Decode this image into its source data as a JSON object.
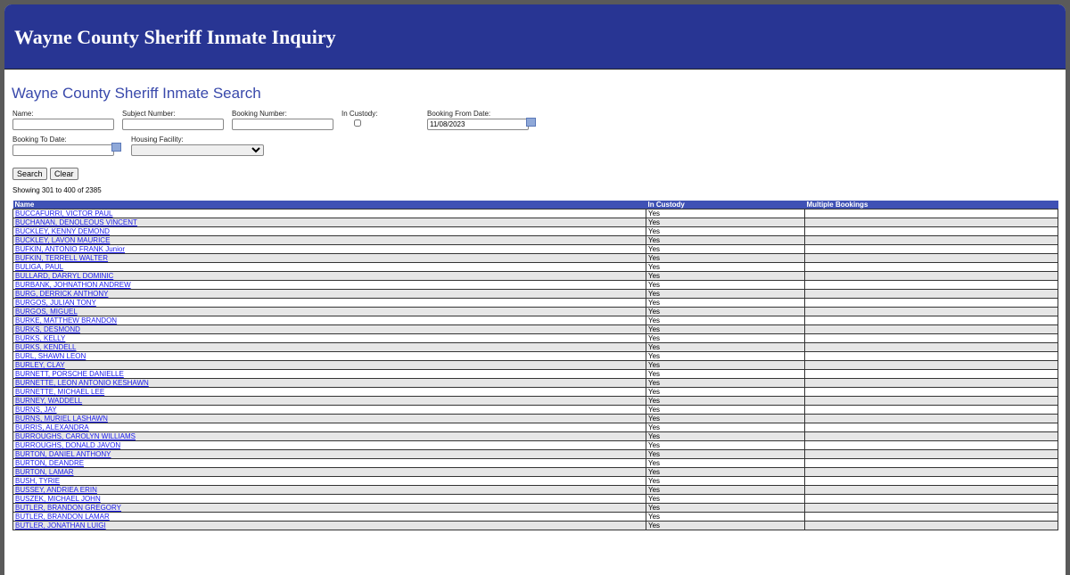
{
  "header": {
    "title": "Wayne County Sheriff Inmate Inquiry"
  },
  "search": {
    "title": "Wayne County Sheriff Inmate Search",
    "name_label": "Name:",
    "name_value": "",
    "subject_label": "Subject Number:",
    "subject_value": "",
    "booking_label": "Booking Number:",
    "booking_value": "",
    "custody_label": "In Custody:",
    "custody_checked": false,
    "from_label": "Booking From Date:",
    "from_value": "11/08/2023",
    "to_label": "Booking To Date:",
    "to_value": "",
    "housing_label": "Housing Facility:",
    "housing_value": "",
    "search_button": "Search",
    "clear_button": "Clear",
    "calendar_icon": "calendar-icon"
  },
  "results": {
    "showing": "Showing 301 to 400 of 2385",
    "columns": [
      "Name",
      "In Custody",
      "Multiple Bookings"
    ],
    "rows": [
      [
        "BUCCAFURRI, VICTOR PAUL",
        "Yes",
        ""
      ],
      [
        "BUCHANAN, DENOLEOUS VINCENT",
        "Yes",
        ""
      ],
      [
        "BUCKLEY, KENNY DEMOND",
        "Yes",
        ""
      ],
      [
        "BUCKLEY, LAVON MAURICE",
        "Yes",
        ""
      ],
      [
        "BUFKIN, ANTONIO FRANK Junior",
        "Yes",
        ""
      ],
      [
        "BUFKIN, TERRELL WALTER",
        "Yes",
        ""
      ],
      [
        "BULIGA, PAUL",
        "Yes",
        ""
      ],
      [
        "BULLARD, DARRYL DOMINIC",
        "Yes",
        ""
      ],
      [
        "BURBANK, JOHNATHON ANDREW",
        "Yes",
        ""
      ],
      [
        "BURG, DERRICK ANTHONY",
        "Yes",
        ""
      ],
      [
        "BURGOS, JULIAN TONY",
        "Yes",
        ""
      ],
      [
        "BURGOS, MIGUEL",
        "Yes",
        ""
      ],
      [
        "BURKE, MATTHEW BRANDON",
        "Yes",
        ""
      ],
      [
        "BURKS, DESMOND",
        "Yes",
        ""
      ],
      [
        "BURKS, KELLY",
        "Yes",
        ""
      ],
      [
        "BURKS, KENDELL",
        "Yes",
        ""
      ],
      [
        "BURL, SHAWN LEON",
        "Yes",
        ""
      ],
      [
        "BURLEY, CLAY",
        "Yes",
        ""
      ],
      [
        "BURNETT, PORSCHE DANIELLE",
        "Yes",
        ""
      ],
      [
        "BURNETTE, LEON ANTONIO KESHAWN",
        "Yes",
        ""
      ],
      [
        "BURNETTE, MICHAEL LEE",
        "Yes",
        ""
      ],
      [
        "BURNEY, WADDELL",
        "Yes",
        ""
      ],
      [
        "BURNS, JAY",
        "Yes",
        ""
      ],
      [
        "BURNS, MURIEL LASHAWN",
        "Yes",
        ""
      ],
      [
        "BURRIS, ALEXANDRA",
        "Yes",
        ""
      ],
      [
        "BURROUGHS, CAROLYN WILLIAMS",
        "Yes",
        ""
      ],
      [
        "BURROUGHS, DONALD JAVON",
        "Yes",
        ""
      ],
      [
        "BURTON, DANIEL ANTHONY",
        "Yes",
        ""
      ],
      [
        "BURTON, DEANDRE",
        "Yes",
        ""
      ],
      [
        "BURTON, LAMAR",
        "Yes",
        ""
      ],
      [
        "BUSH, TYRIE",
        "Yes",
        ""
      ],
      [
        "BUSSEY, ANDRIEA ERIN",
        "Yes",
        ""
      ],
      [
        "BUSZEK, MICHAEL JOHN",
        "Yes",
        ""
      ],
      [
        "BUTLER, BRANDON GREGORY",
        "Yes",
        ""
      ],
      [
        "BUTLER, BRANDON LAMAR",
        "Yes",
        ""
      ],
      [
        "BUTLER, JONATHAN LUIGI",
        "Yes",
        ""
      ]
    ]
  }
}
